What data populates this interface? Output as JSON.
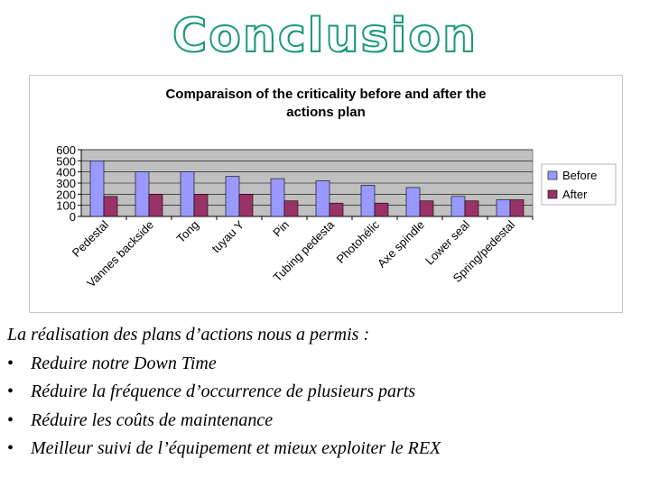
{
  "slide": {
    "title": "Conclusion",
    "intro": "La réalisation des plans d’actions nous a permis :",
    "bullets": [
      "Reduire notre Down Time",
      "Réduire la fréquence d’occurrence de plusieurs parts",
      "Réduire les coûts de maintenance",
      "Meilleur suivi de l’équipement et mieux exploiter le REX"
    ]
  },
  "chart_data": {
    "type": "bar",
    "title_lines": [
      "Comparaison of the criticality  before and after the",
      "actions plan"
    ],
    "categories": [
      "Pedestal",
      "Vannes backside",
      "Tong",
      "tuyau Y",
      "Pin",
      "Tubing pedesta",
      "Photohélic",
      "Axe spindle",
      "Lower seal",
      "Spring/pedestal"
    ],
    "series": [
      {
        "name": "Before",
        "values": [
          500,
          400,
          400,
          360,
          340,
          320,
          280,
          260,
          180,
          150
        ],
        "color": "#9999ff"
      },
      {
        "name": "After",
        "values": [
          180,
          200,
          200,
          200,
          140,
          120,
          120,
          140,
          140,
          150
        ],
        "color": "#993366"
      }
    ],
    "yticks": [
      0,
      100,
      200,
      300,
      400,
      500,
      600
    ],
    "ylim": [
      0,
      600
    ],
    "grid": true,
    "plot_background": "#c0c0c0",
    "legend_position": "right"
  }
}
